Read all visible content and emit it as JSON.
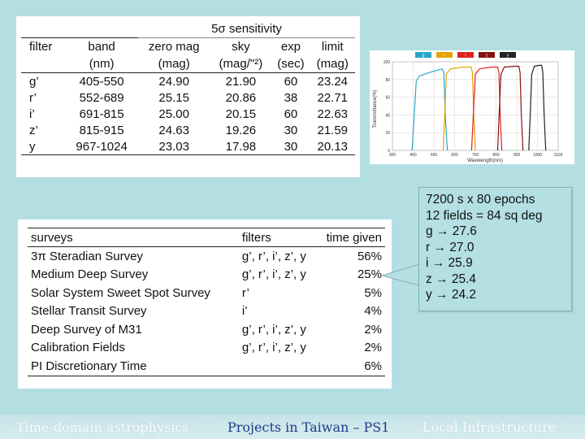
{
  "sensitivity_table": {
    "title": "5σ sensitivity",
    "headers_row1": [
      "filter",
      "band",
      "zero mag",
      "sky",
      "exp",
      "limit"
    ],
    "headers_row2": [
      "",
      "(nm)",
      "(mag)",
      "(mag/\"²)",
      "(sec)",
      "(mag)"
    ],
    "rows": [
      [
        "g’",
        "405-550",
        "24.90",
        "21.90",
        "60",
        "23.24"
      ],
      [
        "r’",
        "552-689",
        "25.15",
        "20.86",
        "38",
        "22.71"
      ],
      [
        "i’",
        "691-815",
        "25.00",
        "20.15",
        "60",
        "22.63"
      ],
      [
        "z’",
        "815-915",
        "24.63",
        "19.26",
        "30",
        "21.59"
      ],
      [
        "y",
        "967-1024",
        "23.03",
        "17.98",
        "30",
        "20.13"
      ]
    ]
  },
  "chart_data": {
    "type": "line",
    "xlabel": "Wavelength(nm)",
    "ylabel": "Transmittance(%)",
    "xlim": [
      300,
      1100
    ],
    "ylim": [
      0,
      100
    ],
    "x_ticks": [
      "300",
      "400",
      "500",
      "600",
      "700",
      "800",
      "900",
      "1000",
      "1100"
    ],
    "y_ticks": [
      "0",
      "20",
      "40",
      "60",
      "80",
      "100"
    ],
    "grid": true,
    "legend_position": "top",
    "series": [
      {
        "name": "g",
        "color": "#2aa6c7",
        "x": [
          395,
          405,
          415,
          430,
          480,
          540,
          548,
          555,
          565
        ],
        "y": [
          0,
          40,
          78,
          84,
          88,
          92,
          88,
          40,
          0
        ]
      },
      {
        "name": "r",
        "color": "#e6a300",
        "x": [
          545,
          552,
          560,
          580,
          640,
          680,
          686,
          692,
          700
        ],
        "y": [
          0,
          40,
          86,
          92,
          94,
          94,
          88,
          40,
          0
        ]
      },
      {
        "name": "i",
        "color": "#e02020",
        "x": [
          682,
          690,
          700,
          720,
          780,
          808,
          814,
          820,
          828
        ],
        "y": [
          0,
          40,
          86,
          92,
          94,
          94,
          88,
          40,
          0
        ]
      },
      {
        "name": "z",
        "color": "#8a1010",
        "x": [
          808,
          815,
          824,
          840,
          890,
          910,
          916,
          922,
          930
        ],
        "y": [
          0,
          40,
          86,
          94,
          95,
          95,
          88,
          40,
          0
        ]
      },
      {
        "name": "y",
        "color": "#222222",
        "x": [
          958,
          965,
          972,
          985,
          1010,
          1020,
          1026,
          1032,
          1040
        ],
        "y": [
          0,
          40,
          86,
          95,
          96,
          96,
          88,
          40,
          0
        ]
      }
    ]
  },
  "survey_table": {
    "headers": [
      "surveys",
      "filters",
      "time given"
    ],
    "rows": [
      [
        "3π Steradian Survey",
        "g’, r’, i’, z’, y",
        "56%"
      ],
      [
        "Medium Deep Survey",
        "g’, r’, i’, z’, y",
        "25%"
      ],
      [
        "Solar System Sweet Spot Survey",
        "r’",
        "5%"
      ],
      [
        "Stellar Transit Survey",
        "i’",
        "4%"
      ],
      [
        "Deep Survey of M31",
        "g’, r’, i’, z’, y",
        "2%"
      ],
      [
        "Calibration Fields",
        "g’, r’, i’, z’, y",
        "2%"
      ],
      [
        "PI Discretionary Time",
        "",
        "6%"
      ]
    ]
  },
  "callout": {
    "lines": [
      "7200 s x 80 epochs",
      "12 fields = 84 sq deg",
      "g → 27.6",
      "r → 27.0",
      "i → 25.9",
      "z → 25.4",
      "y → 24.2"
    ]
  },
  "footer": {
    "items": [
      {
        "label": "Time-domain astrophysics",
        "state": "inactive"
      },
      {
        "label": "Projects in Taiwan – PS1",
        "state": "active"
      },
      {
        "label": "Local Infrastructure",
        "state": "inactive"
      }
    ]
  },
  "colors": {
    "background": "#b3dfe3",
    "footer_active": "#1f3a8a",
    "footer_inactive": "#ffffff"
  }
}
